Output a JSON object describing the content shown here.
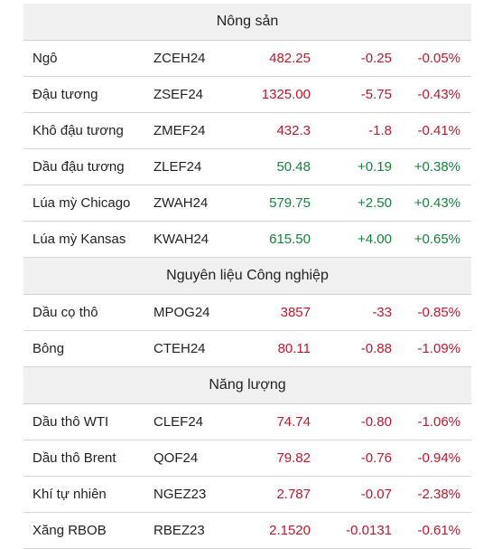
{
  "sections": [
    {
      "title": "Nông sản",
      "rows": [
        {
          "name": "Ngô",
          "code": "ZCEH24",
          "price": "482.25",
          "change": "-0.25",
          "pct": "-0.05%",
          "dir": "down"
        },
        {
          "name": "Đậu tương",
          "code": "ZSEF24",
          "price": "1325.00",
          "change": "-5.75",
          "pct": "-0.43%",
          "dir": "down"
        },
        {
          "name": "Khô đậu tương",
          "code": "ZMEF24",
          "price": "432.3",
          "change": "-1.8",
          "pct": "-0.41%",
          "dir": "down"
        },
        {
          "name": "Dầu đậu tương",
          "code": "ZLEF24",
          "price": "50.48",
          "change": "+0.19",
          "pct": "+0.38%",
          "dir": "up"
        },
        {
          "name": "Lúa mỳ Chicago",
          "code": "ZWAH24",
          "price": "579.75",
          "change": "+2.50",
          "pct": "+0.43%",
          "dir": "up"
        },
        {
          "name": "Lúa mỳ Kansas",
          "code": "KWAH24",
          "price": "615.50",
          "change": "+4.00",
          "pct": "+0.65%",
          "dir": "up"
        }
      ]
    },
    {
      "title": "Nguyên liệu Công nghiệp",
      "rows": [
        {
          "name": "Dầu cọ thô",
          "code": "MPOG24",
          "price": "3857",
          "change": "-33",
          "pct": "-0.85%",
          "dir": "down"
        },
        {
          "name": "Bông",
          "code": "CTEH24",
          "price": "80.11",
          "change": "-0.88",
          "pct": "-1.09%",
          "dir": "down"
        }
      ]
    },
    {
      "title": "Năng lượng",
      "rows": [
        {
          "name": "Dầu thô WTI",
          "code": "CLEF24",
          "price": "74.74",
          "change": "-0.80",
          "pct": "-1.06%",
          "dir": "down"
        },
        {
          "name": "Dầu thô Brent",
          "code": "QOF24",
          "price": "79.82",
          "change": "-0.76",
          "pct": "-0.94%",
          "dir": "down"
        },
        {
          "name": "Khí tự nhiên",
          "code": "NGEZ23",
          "price": "2.787",
          "change": "-0.07",
          "pct": "-2.38%",
          "dir": "down"
        },
        {
          "name": "Xăng RBOB",
          "code": "RBEZ23",
          "price": "2.1520",
          "change": "-0.0131",
          "pct": "-0.61%",
          "dir": "down"
        }
      ]
    }
  ],
  "colors": {
    "down": "#c0172d",
    "up": "#17823a",
    "section_bg": "#f0f0f0"
  }
}
